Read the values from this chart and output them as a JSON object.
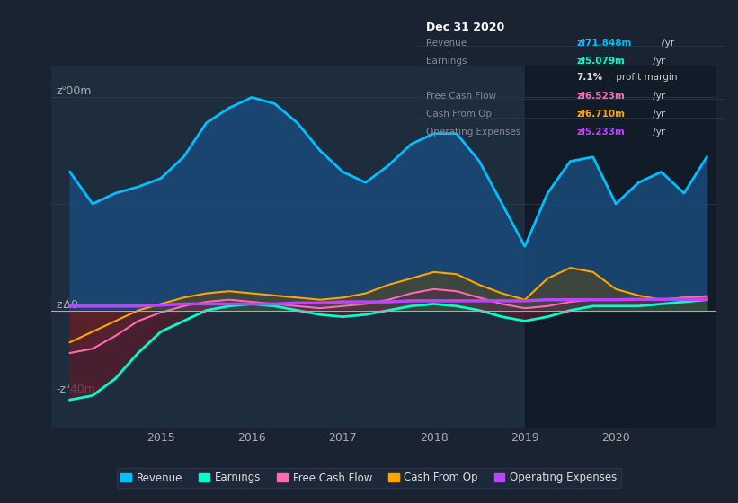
{
  "bg_color": "#1a2332",
  "plot_bg_color": "#1e2d3d",
  "dark_bg_color": "#0d1520",
  "ylabel_top": "zᐡ00m",
  "ylabel_zero": "zᐐ0",
  "ylabel_neg": "-zᐡ40m",
  "x_years": [
    2014.0,
    2014.25,
    2014.5,
    2014.75,
    2015.0,
    2015.25,
    2015.5,
    2015.75,
    2016.0,
    2016.25,
    2016.5,
    2016.75,
    2017.0,
    2017.25,
    2017.5,
    2017.75,
    2018.0,
    2018.25,
    2018.5,
    2018.75,
    2019.0,
    2019.25,
    2019.5,
    2019.75,
    2020.0,
    2020.25,
    2020.5,
    2020.75,
    2021.0
  ],
  "revenue": [
    65,
    50,
    55,
    58,
    62,
    72,
    88,
    95,
    100,
    97,
    88,
    75,
    65,
    60,
    68,
    78,
    83,
    83,
    70,
    50,
    30,
    55,
    70,
    72,
    50,
    60,
    65,
    55,
    72
  ],
  "earnings": [
    -42,
    -40,
    -32,
    -20,
    -10,
    -5,
    0,
    2,
    3,
    2,
    0,
    -2,
    -3,
    -2,
    0,
    2,
    3,
    2,
    0,
    -3,
    -5,
    -3,
    0,
    2,
    2,
    2,
    3,
    4,
    5
  ],
  "free_cash_flow": [
    -20,
    -18,
    -12,
    -5,
    -1,
    2,
    4,
    5,
    4,
    3,
    2,
    1,
    2,
    3,
    5,
    8,
    10,
    9,
    6,
    3,
    1,
    2,
    4,
    5,
    5,
    5,
    5,
    6,
    6.5
  ],
  "cash_from_op": [
    -15,
    -10,
    -5,
    0,
    3,
    6,
    8,
    9,
    8,
    7,
    6,
    5,
    6,
    8,
    12,
    15,
    18,
    17,
    12,
    8,
    5,
    15,
    20,
    18,
    10,
    7,
    5,
    6,
    6.7
  ],
  "operating_expenses": [
    2,
    2,
    2,
    2,
    2.5,
    3,
    3,
    3,
    3,
    3,
    3.5,
    3.5,
    4,
    4,
    4,
    4.5,
    4.5,
    4.5,
    4.5,
    4.5,
    4.5,
    5,
    5,
    5,
    5,
    5.2,
    5.2,
    5.2,
    5.2
  ],
  "revenue_color": "#00bfff",
  "revenue_fill": "#1a4a7a",
  "earnings_color": "#00ffcc",
  "free_cash_flow_color": "#ff69b4",
  "cash_from_op_color": "#ffa500",
  "operating_expenses_color": "#bb44ff",
  "grid_color": "#2a3f55",
  "zero_line_color": "#aaaaaa",
  "info_box_title": "Dec 31 2020",
  "info_rows": [
    {
      "label": "Revenue",
      "value": "zł71.848m",
      "suffix": " /yr",
      "value_color": "#00bfff"
    },
    {
      "label": "Earnings",
      "value": "zł5.079m",
      "suffix": " /yr",
      "value_color": "#00ffcc"
    },
    {
      "label": "",
      "value": "7.1%",
      "suffix": " profit margin",
      "value_color": "#dddddd"
    },
    {
      "label": "Free Cash Flow",
      "value": "zł6.523m",
      "suffix": " /yr",
      "value_color": "#ff69b4"
    },
    {
      "label": "Cash From Op",
      "value": "zł6.710m",
      "suffix": " /yr",
      "value_color": "#ffa500"
    },
    {
      "label": "Operating Expenses",
      "value": "zł5.233m",
      "suffix": " /yr",
      "value_color": "#bb44ff"
    }
  ],
  "legend_items": [
    {
      "label": "Revenue",
      "color": "#00bfff"
    },
    {
      "label": "Earnings",
      "color": "#00ffcc"
    },
    {
      "label": "Free Cash Flow",
      "color": "#ff69b4"
    },
    {
      "label": "Cash From Op",
      "color": "#ffa500"
    },
    {
      "label": "Operating Expenses",
      "color": "#bb44ff"
    }
  ],
  "xlim": [
    2013.8,
    2021.1
  ],
  "ylim": [
    -55,
    115
  ],
  "x_ticks": [
    2015,
    2016,
    2017,
    2018,
    2019,
    2020
  ],
  "highlight_start": 2019.0,
  "highlight_end": 2021.1
}
